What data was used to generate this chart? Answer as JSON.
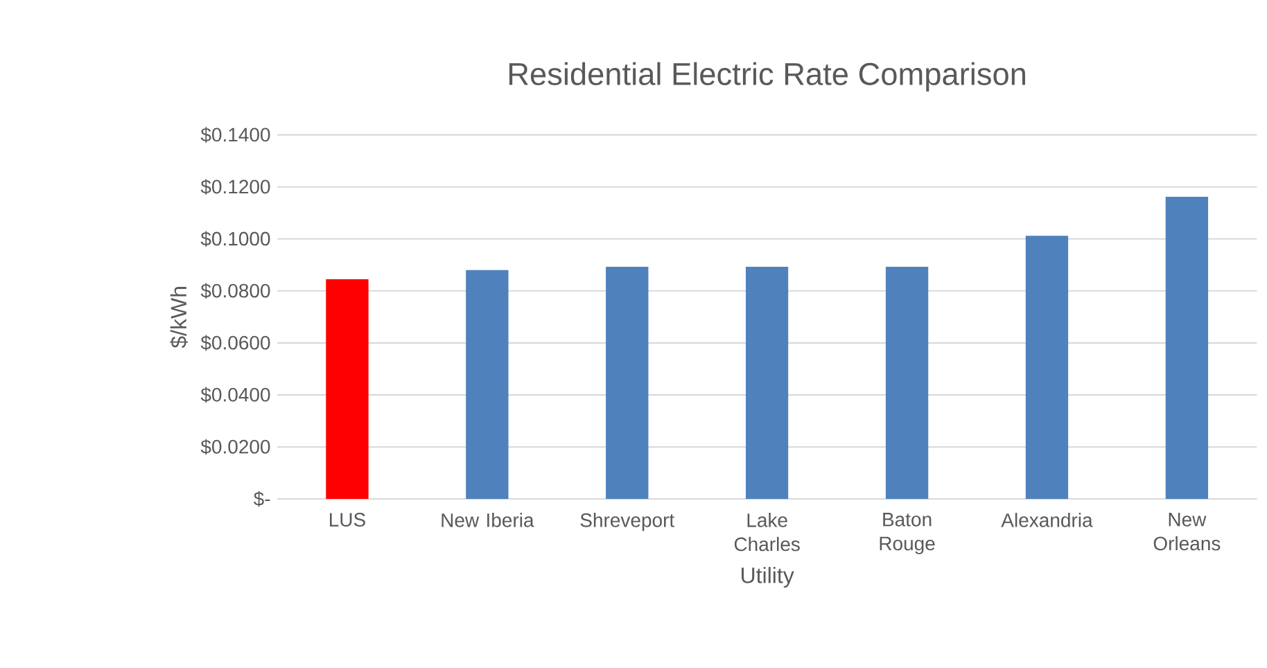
{
  "chart_data": {
    "type": "bar",
    "title": "Residential Electric Rate Comparison",
    "xlabel": "Utility",
    "ylabel": "$/kWh",
    "categories": [
      "LUS",
      "New Iberia",
      "Shreveport",
      "Lake Charles",
      "Baton Rouge",
      "Alexandria",
      "New Orleans"
    ],
    "values": [
      0.0845,
      0.088,
      0.0893,
      0.0893,
      0.0893,
      0.1012,
      0.1162
    ],
    "colors": [
      "#ff0000",
      "#4f81bd",
      "#4f81bd",
      "#4f81bd",
      "#4f81bd",
      "#4f81bd",
      "#4f81bd"
    ],
    "ylim": [
      0,
      0.14
    ],
    "yticks": [
      {
        "value": 0,
        "label": "$-"
      },
      {
        "value": 0.02,
        "label": "$0.0200"
      },
      {
        "value": 0.04,
        "label": "$0.0400"
      },
      {
        "value": 0.06,
        "label": "$0.0600"
      },
      {
        "value": 0.08,
        "label": "$0.0800"
      },
      {
        "value": 0.1,
        "label": "$0.1000"
      },
      {
        "value": 0.12,
        "label": "$0.1200"
      },
      {
        "value": 0.14,
        "label": "$0.1400"
      }
    ],
    "grid": "y"
  }
}
